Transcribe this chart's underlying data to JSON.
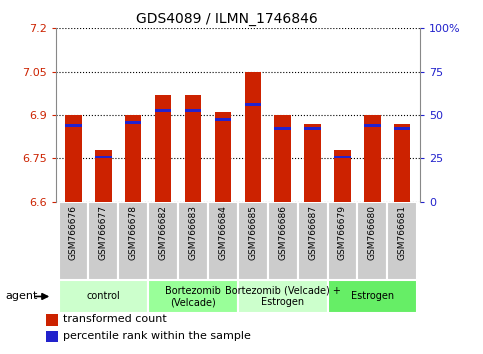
{
  "title": "GDS4089 / ILMN_1746846",
  "samples": [
    "GSM766676",
    "GSM766677",
    "GSM766678",
    "GSM766682",
    "GSM766683",
    "GSM766684",
    "GSM766685",
    "GSM766686",
    "GSM766687",
    "GSM766679",
    "GSM766680",
    "GSM766681"
  ],
  "red_values": [
    6.9,
    6.78,
    6.9,
    6.97,
    6.97,
    6.91,
    7.05,
    6.9,
    6.87,
    6.78,
    6.9,
    6.87
  ],
  "blue_values": [
    6.865,
    6.755,
    6.875,
    6.915,
    6.915,
    6.885,
    6.935,
    6.855,
    6.855,
    6.755,
    6.865,
    6.855
  ],
  "ymin": 6.6,
  "ymax": 7.2,
  "yticks": [
    6.6,
    6.75,
    6.9,
    7.05,
    7.2
  ],
  "ytick_labels": [
    "6.6",
    "6.75",
    "6.9",
    "7.05",
    "7.2"
  ],
  "right_yticks": [
    0,
    25,
    50,
    75,
    100
  ],
  "right_ytick_labels": [
    "0",
    "25",
    "50",
    "75",
    "100%"
  ],
  "groups": [
    {
      "label": "control",
      "start": 0,
      "end": 3,
      "color": "#ccffcc"
    },
    {
      "label": "Bortezomib\n(Velcade)",
      "start": 3,
      "end": 6,
      "color": "#99ff99"
    },
    {
      "label": "Bortezomib (Velcade) +\nEstrogen",
      "start": 6,
      "end": 9,
      "color": "#ccffcc"
    },
    {
      "label": "Estrogen",
      "start": 9,
      "end": 12,
      "color": "#66ee66"
    }
  ],
  "bar_color": "#cc2200",
  "blue_color": "#2222cc",
  "bar_width": 0.55,
  "left_tick_color": "#cc2200",
  "right_tick_color": "#2222cc",
  "agent_label": "agent",
  "legend_red": "transformed count",
  "legend_blue": "percentile rank within the sample",
  "blue_bar_height": 0.01,
  "bg_color": "#ffffff",
  "label_box_color": "#cccccc",
  "label_box_edge": "#ffffff"
}
